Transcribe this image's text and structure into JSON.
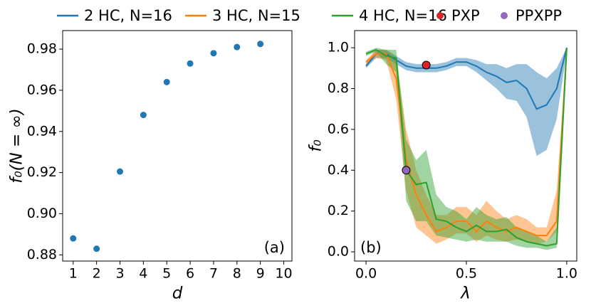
{
  "chart_data": [
    {
      "type": "scatter",
      "xlabel": "d",
      "ylabel": "f₀(N = ∞)",
      "annotation": "(a)",
      "x": [
        1,
        2,
        3,
        4,
        5,
        6,
        7,
        8,
        9
      ],
      "values": [
        0.888,
        0.883,
        0.9205,
        0.948,
        0.964,
        0.973,
        0.978,
        0.981,
        0.9825
      ],
      "color": "#1f77b4",
      "xlim": [
        0.55,
        10.35
      ],
      "xticks": [
        1,
        2,
        3,
        4,
        5,
        6,
        7,
        8,
        9,
        10
      ],
      "ylim": [
        0.877,
        0.989
      ],
      "yticks": [
        0.88,
        {
          "value": 0.9,
          "label": "0.90"
        },
        0.92,
        0.94,
        0.96,
        0.98
      ]
    },
    {
      "type": "line",
      "xlabel": "λ",
      "ylabel": "f₀",
      "annotation": "(b)",
      "x": [
        0,
        0.05,
        0.1,
        0.15,
        0.2,
        0.25,
        0.3,
        0.35,
        0.4,
        0.45,
        0.5,
        0.55,
        0.6,
        0.65,
        0.7,
        0.75,
        0.8,
        0.85,
        0.9,
        0.95,
        1.0
      ],
      "series": [
        {
          "name": "2 HC, N=16",
          "color": "#1f77b4",
          "values": [
            0.91,
            0.97,
            0.97,
            0.94,
            0.91,
            0.9,
            0.9,
            0.9,
            0.91,
            0.93,
            0.93,
            0.91,
            0.88,
            0.86,
            0.83,
            0.84,
            0.8,
            0.7,
            0.72,
            0.8,
            1.0
          ],
          "lower": [
            0.9,
            0.95,
            0.95,
            0.92,
            0.89,
            0.88,
            0.88,
            0.88,
            0.89,
            0.91,
            0.91,
            0.88,
            0.84,
            0.8,
            0.75,
            0.74,
            0.66,
            0.47,
            0.5,
            0.65,
            0.98
          ],
          "upper": [
            0.92,
            0.99,
            0.99,
            0.96,
            0.93,
            0.92,
            0.92,
            0.92,
            0.93,
            0.95,
            0.95,
            0.94,
            0.92,
            0.92,
            0.9,
            0.92,
            0.92,
            0.88,
            0.85,
            0.9,
            1.0
          ]
        },
        {
          "name": "3 HC, N=15",
          "color": "#ff7f0e",
          "values": [
            0.93,
            0.97,
            0.97,
            0.85,
            0.45,
            0.28,
            0.18,
            0.1,
            0.12,
            0.15,
            0.15,
            0.1,
            0.15,
            0.12,
            0.1,
            0.12,
            0.1,
            0.08,
            0.08,
            0.15,
            1.0
          ],
          "lower": [
            0.92,
            0.95,
            0.94,
            0.75,
            0.3,
            0.12,
            0.08,
            0.04,
            0.06,
            0.09,
            0.09,
            0.05,
            0.08,
            0.06,
            0.05,
            0.06,
            0.05,
            0.04,
            0.05,
            0.1,
            0.98
          ],
          "upper": [
            0.94,
            0.99,
            0.99,
            0.95,
            0.6,
            0.4,
            0.28,
            0.18,
            0.18,
            0.22,
            0.22,
            0.18,
            0.25,
            0.2,
            0.16,
            0.18,
            0.16,
            0.12,
            0.12,
            0.3,
            1.0
          ]
        },
        {
          "name": "4 HC, N=16",
          "color": "#2ca02c",
          "values": [
            0.97,
            0.99,
            0.96,
            0.95,
            0.4,
            0.33,
            0.34,
            0.16,
            0.15,
            0.12,
            0.1,
            0.13,
            0.1,
            0.1,
            0.11,
            0.07,
            0.05,
            0.04,
            0.03,
            0.04,
            1.0
          ],
          "lower": [
            0.96,
            0.98,
            0.92,
            0.88,
            0.25,
            0.15,
            0.15,
            0.08,
            0.07,
            0.06,
            0.05,
            0.06,
            0.05,
            0.05,
            0.05,
            0.03,
            0.02,
            0.02,
            0.01,
            0.02,
            0.98
          ],
          "upper": [
            0.98,
            1.0,
            0.99,
            0.99,
            0.55,
            0.45,
            0.5,
            0.28,
            0.22,
            0.2,
            0.16,
            0.22,
            0.18,
            0.16,
            0.17,
            0.12,
            0.1,
            0.08,
            0.05,
            0.12,
            1.0
          ]
        }
      ],
      "points": [
        {
          "name": "PXP",
          "color": "#d62728",
          "x": 0.3,
          "y": 0.915
        },
        {
          "name": "PPXPP",
          "color": "#9467bd",
          "x": 0.2,
          "y": 0.4
        }
      ],
      "xlim": [
        -0.057,
        1.05
      ],
      "xticks": [
        {
          "value": 0,
          "label": "0.0"
        },
        0.5,
        {
          "value": 1,
          "label": "1.0"
        }
      ],
      "ylim": [
        -0.045,
        1.084
      ],
      "yticks": [
        {
          "value": 0,
          "label": "0.0"
        },
        0.2,
        0.4,
        0.6,
        0.8,
        {
          "value": 1,
          "label": "1.0"
        }
      ]
    }
  ]
}
